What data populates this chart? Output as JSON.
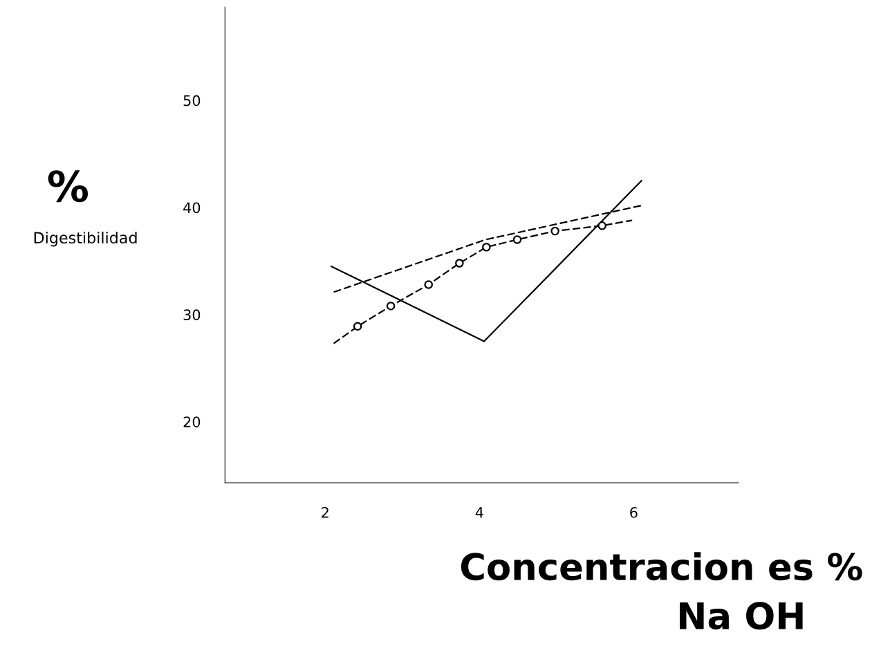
{
  "chart_data": {
    "type": "line",
    "xlabel": "Concentracion es %\nNa OH",
    "ylabel": "%\nDigestibilidad",
    "xlim": [
      0.7,
      7.36
    ],
    "ylim": [
      14.3,
      58.7
    ],
    "xticks": [
      2,
      4,
      6
    ],
    "yticks": [
      20,
      30,
      40,
      50
    ],
    "grid": false,
    "legend": false,
    "series": [
      {
        "color": "#000000",
        "line_style": "solid",
        "marker": "none",
        "x": [
          2.08,
          4.06,
          6.1
        ],
        "values": [
          34.5,
          27.5,
          42.5
        ]
      },
      {
        "color": "#000000",
        "line_style": "dashed",
        "marker": "none",
        "x": [
          2.11,
          4.08,
          6.11
        ],
        "values": [
          32.1,
          37.0,
          40.2
        ]
      },
      {
        "color": "#000000",
        "line_style": "dashed",
        "marker": "none",
        "x": [
          2.11,
          2.42,
          2.85,
          3.34,
          3.74,
          4.09,
          4.49,
          4.98,
          5.59,
          5.98
        ],
        "values": [
          27.3,
          28.9,
          30.8,
          32.8,
          34.8,
          36.3,
          37.0,
          37.8,
          38.3,
          38.8
        ]
      },
      {
        "type": "scatter",
        "color": "#000000",
        "marker": "circle",
        "x": [
          2.42,
          2.85,
          3.34,
          3.74,
          4.09,
          4.49,
          4.98,
          5.59
        ],
        "values": [
          28.9,
          30.8,
          32.8,
          34.8,
          36.3,
          37.0,
          37.8,
          38.3
        ]
      }
    ]
  }
}
